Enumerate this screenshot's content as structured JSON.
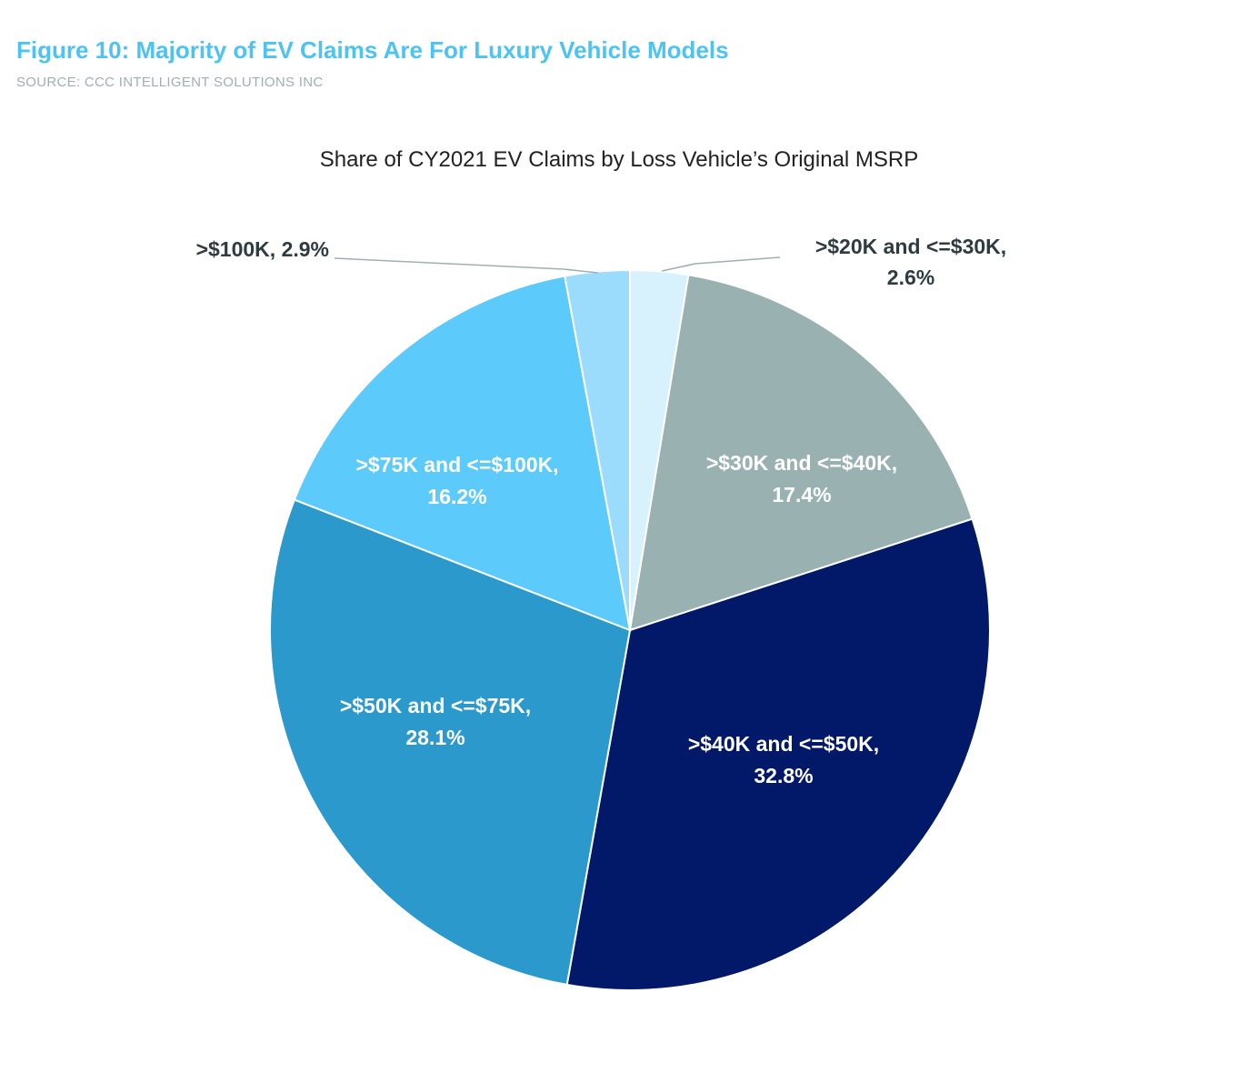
{
  "figure": {
    "title": "Figure 10: Majority of EV Claims Are For Luxury Vehicle Models",
    "source": "SOURCE: CCC INTELLIGENT SOLUTIONS INC"
  },
  "chart_data": {
    "type": "pie",
    "title": "Share of CY2021 EV Claims by Loss Vehicle’s Original MSRP",
    "slices": [
      {
        "label": ">$20K and <=$30K,",
        "value_label": "2.6%",
        "value": 2.6,
        "color": "#d7f2fd",
        "text_color": "#2f3b40"
      },
      {
        "label": ">$30K and <=$40K,",
        "value_label": "17.4%",
        "value": 17.4,
        "color": "#99b1b1",
        "text_color": "#ffffff"
      },
      {
        "label": ">$40K and <=$50K,",
        "value_label": "32.8%",
        "value": 32.8,
        "color": "#021869",
        "text_color": "#ffffff"
      },
      {
        "label": ">$50K and <=$75K,",
        "value_label": "28.1%",
        "value": 28.1,
        "color": "#2b99cc",
        "text_color": "#ffffff"
      },
      {
        "label": ">$75K and <=$100K,",
        "value_label": "16.2%",
        "value": 16.2,
        "color": "#5ccbfc",
        "text_color": "#ffffff"
      },
      {
        "label": ">$100K, 2.9%",
        "value_label": "",
        "value": 2.9,
        "color": "#9bdcfc",
        "text_color": "#2f3b40"
      }
    ],
    "start_angle": "12 o'clock",
    "direction": "clockwise",
    "legend": "none"
  }
}
